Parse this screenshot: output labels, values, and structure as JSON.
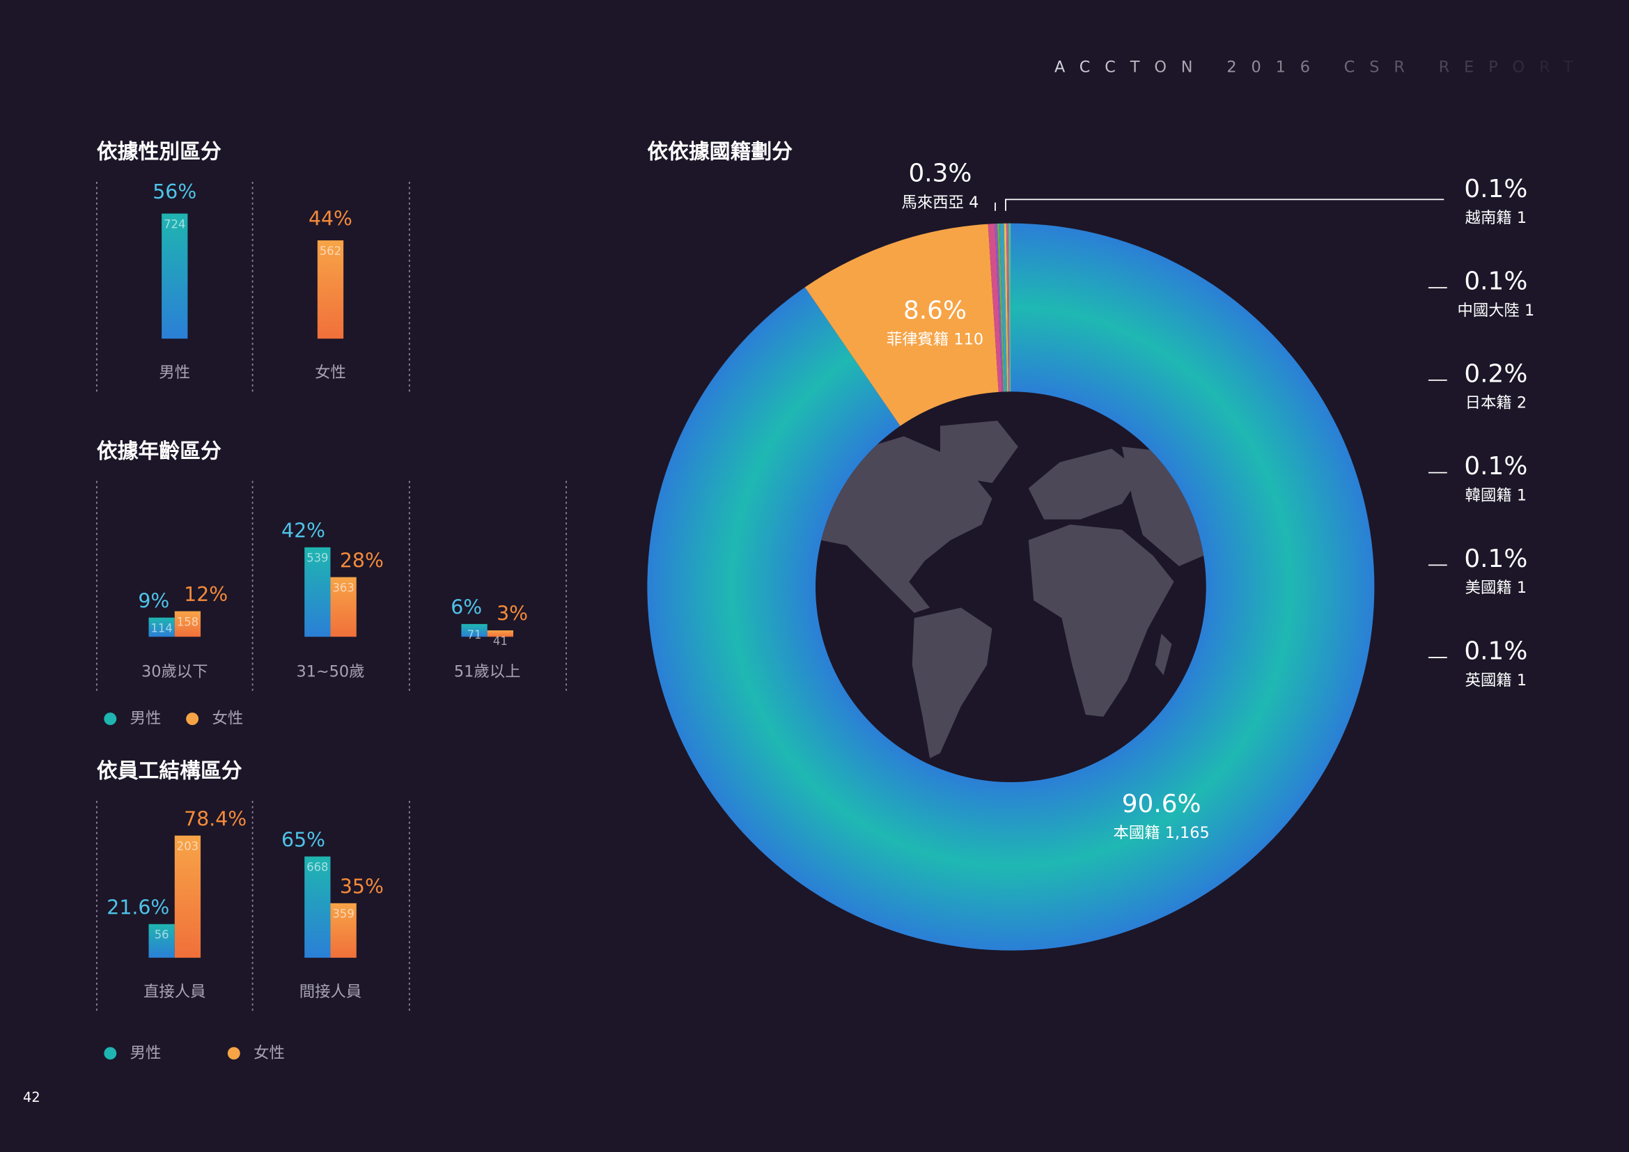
{
  "header": "ACCTON 2016 CSR REPORT",
  "page_number": 42,
  "chart_data": [
    {
      "type": "bar",
      "title": "依據性別區分",
      "categories": [
        "男性",
        "女性"
      ],
      "values": [
        56,
        44
      ],
      "value_labels": [
        "56%",
        "44%"
      ],
      "counts": [
        724,
        562
      ],
      "gradients": [
        [
          "#1fb5b0",
          "#2b7fd6"
        ],
        [
          "#f7a447",
          "#f0703a"
        ]
      ],
      "label_colors": [
        "#4fc3e8",
        "#f58a3a"
      ]
    },
    {
      "type": "bar",
      "title": "依據年齡區分",
      "categories": [
        "30歲以下",
        "31~50歲",
        "51歲以上"
      ],
      "series": [
        {
          "name": "男性",
          "color": "#1fb5b0",
          "gradient": [
            "#1fb5b0",
            "#2b7fd6"
          ],
          "label_color": "#4fc3e8",
          "values": [
            9,
            42,
            6
          ],
          "value_labels": [
            "9%",
            "42%",
            "6%"
          ],
          "counts": [
            114,
            539,
            71
          ]
        },
        {
          "name": "女性",
          "color": "#f7a447",
          "gradient": [
            "#f7a447",
            "#f0703a"
          ],
          "label_color": "#f58a3a",
          "values": [
            12,
            28,
            3
          ],
          "value_labels": [
            "12%",
            "28%",
            "3%"
          ],
          "counts": [
            158,
            363,
            41
          ]
        }
      ]
    },
    {
      "type": "bar",
      "title": "依員工結構區分",
      "categories": [
        "直接人員",
        "間接人員"
      ],
      "series": [
        {
          "name": "男性",
          "color": "#1fb5b0",
          "gradient": [
            "#1fb5b0",
            "#2b7fd6"
          ],
          "label_color": "#4fc3e8",
          "values": [
            21.6,
            65
          ],
          "value_labels": [
            "21.6%",
            "65%"
          ],
          "counts": [
            56,
            668
          ]
        },
        {
          "name": "女性",
          "color": "#f7a447",
          "gradient": [
            "#f7a447",
            "#f0703a"
          ],
          "label_color": "#f58a3a",
          "values": [
            78.4,
            35
          ],
          "value_labels": [
            "78.4%",
            "35%"
          ],
          "counts": [
            203,
            359
          ]
        }
      ]
    },
    {
      "type": "pie",
      "title": "依依據國籍劃分",
      "donut": true,
      "categories": [
        "本國籍",
        "菲律賓籍",
        "馬來西亞",
        "越南籍",
        "中國大陸",
        "日本籍",
        "韓國籍",
        "美國籍",
        "英國籍"
      ],
      "values": [
        90.6,
        8.6,
        0.3,
        0.1,
        0.1,
        0.2,
        0.1,
        0.1,
        0.1
      ],
      "value_labels": [
        "90.6%",
        "8.6%",
        "0.3%",
        "0.1%",
        "0.1%",
        "0.2%",
        "0.1%",
        "0.1%",
        "0.1%"
      ],
      "counts": [
        {
          "value": 1165,
          "label": "1,165"
        },
        110,
        4,
        1,
        1,
        2,
        1,
        1,
        1
      ],
      "colors": [
        [
          "#2b7fd6",
          "#1fb8b2",
          "#2b7fd6"
        ],
        "#f7a447",
        "#d4508a",
        "#8a5cc8",
        "#6ab04c",
        "#3aa0c0",
        "#e0c050",
        "#c06090",
        "#50c0a0"
      ]
    }
  ]
}
